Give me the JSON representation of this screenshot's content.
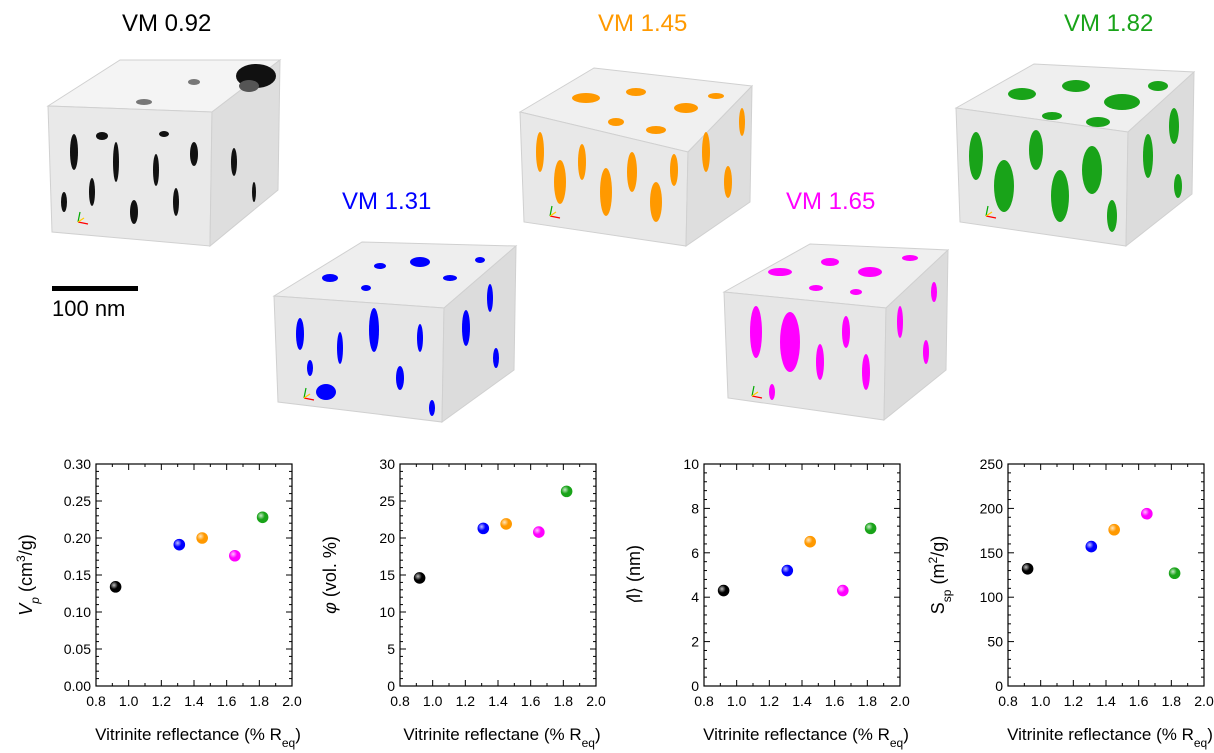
{
  "samples": [
    {
      "label": "VM 0.92",
      "color": "#000000",
      "reflectance": 0.92
    },
    {
      "label": "VM 1.31",
      "color": "#0000ff",
      "reflectance": 1.31
    },
    {
      "label": "VM 1.45",
      "color": "#ff9900",
      "reflectance": 1.45
    },
    {
      "label": "VM 1.65",
      "color": "#ff00ff",
      "reflectance": 1.65
    },
    {
      "label": "VM 1.82",
      "color": "#19a319",
      "reflectance": 1.82
    }
  ],
  "scale_bar": {
    "label": "100 nm"
  },
  "chart_data": [
    {
      "type": "scatter",
      "xlabel_parts": [
        "Vitrinite reflectance (% R",
        "eq",
        ")"
      ],
      "ylabel_parts": [
        "V",
        "p",
        " (cm",
        "3",
        "/g)"
      ],
      "xlim": [
        0.8,
        2.0
      ],
      "ylim": [
        0.0,
        0.3
      ],
      "xticks": [
        "0.8",
        "1.0",
        "1.2",
        "1.4",
        "1.6",
        "1.8",
        "2.0"
      ],
      "yticks": [
        "0.00",
        "0.05",
        "0.10",
        "0.15",
        "0.20",
        "0.25",
        "0.30"
      ],
      "x": [
        0.92,
        1.31,
        1.45,
        1.65,
        1.82
      ],
      "y": [
        0.134,
        0.191,
        0.2,
        0.176,
        0.228
      ],
      "colors": [
        "#000000",
        "#0000ff",
        "#ff9900",
        "#ff00ff",
        "#19a319"
      ]
    },
    {
      "type": "scatter",
      "xlabel_parts": [
        "Vitrinite reflectane (% R",
        "eq",
        ")"
      ],
      "ylabel_parts": [
        "φ (vol. %)"
      ],
      "xlim": [
        0.8,
        2.0
      ],
      "ylim": [
        0,
        30
      ],
      "xticks": [
        "0.8",
        "1.0",
        "1.2",
        "1.4",
        "1.6",
        "1.8",
        "2.0"
      ],
      "yticks": [
        "0",
        "5",
        "10",
        "15",
        "20",
        "25",
        "30"
      ],
      "x": [
        0.92,
        1.31,
        1.45,
        1.65,
        1.82
      ],
      "y": [
        14.6,
        21.3,
        21.9,
        20.8,
        26.3
      ],
      "colors": [
        "#000000",
        "#0000ff",
        "#ff9900",
        "#ff00ff",
        "#19a319"
      ]
    },
    {
      "type": "scatter",
      "xlabel_parts": [
        "Vitrinite reflectance (% R",
        "eq",
        ")"
      ],
      "ylabel_parts": [
        "⟨l⟩ (nm)"
      ],
      "xlim": [
        0.8,
        2.0
      ],
      "ylim": [
        0,
        10
      ],
      "xticks": [
        "0.8",
        "1.0",
        "1.2",
        "1.4",
        "1.6",
        "1.8",
        "2.0"
      ],
      "yticks": [
        "0",
        "2",
        "4",
        "6",
        "8",
        "10"
      ],
      "x": [
        0.92,
        1.31,
        1.45,
        1.65,
        1.82
      ],
      "y": [
        4.3,
        5.2,
        6.5,
        4.3,
        7.1
      ],
      "colors": [
        "#000000",
        "#0000ff",
        "#ff9900",
        "#ff00ff",
        "#19a319"
      ]
    },
    {
      "type": "scatter",
      "xlabel_parts": [
        "Vitrinite reflectance (% R",
        "eq",
        ")"
      ],
      "ylabel_parts": [
        "S",
        "sp",
        " (m",
        "2",
        "/g)"
      ],
      "xlim": [
        0.8,
        2.0
      ],
      "ylim": [
        0,
        250
      ],
      "xticks": [
        "0.8",
        "1.0",
        "1.2",
        "1.4",
        "1.6",
        "1.8",
        "2.0"
      ],
      "yticks": [
        "0",
        "50",
        "100",
        "150",
        "200",
        "250"
      ],
      "x": [
        0.92,
        1.31,
        1.45,
        1.65,
        1.82
      ],
      "y": [
        132,
        157,
        176,
        194,
        127
      ],
      "colors": [
        "#000000",
        "#0000ff",
        "#ff9900",
        "#ff00ff",
        "#19a319"
      ]
    }
  ]
}
